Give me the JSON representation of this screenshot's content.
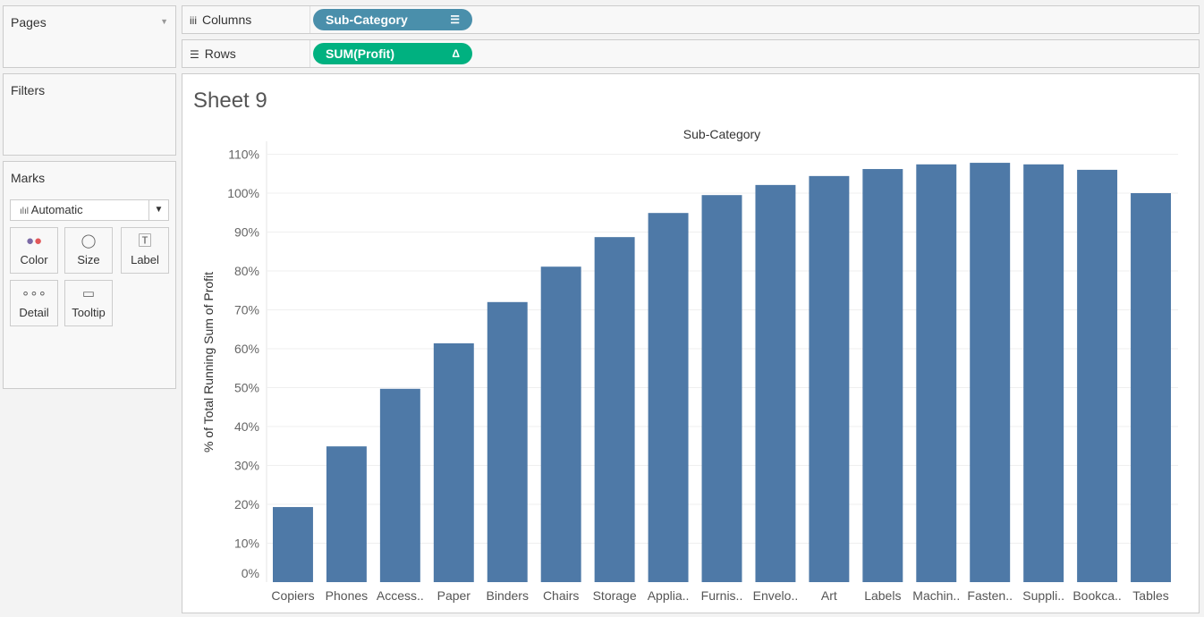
{
  "pages": {
    "title": "Pages"
  },
  "filters": {
    "title": "Filters"
  },
  "marks": {
    "title": "Marks",
    "type": "Automatic",
    "buttons": [
      {
        "label": "Color",
        "icon": "color-icon"
      },
      {
        "label": "Size",
        "icon": "size-icon"
      },
      {
        "label": "Label",
        "icon": "label-icon"
      },
      {
        "label": "Detail",
        "icon": "detail-icon"
      },
      {
        "label": "Tooltip",
        "icon": "tooltip-icon"
      }
    ]
  },
  "shelves": {
    "columns_label": "Columns",
    "columns_pill": "Sub-Category",
    "rows_label": "Rows",
    "rows_pill": "SUM(Profit)",
    "rows_pill_icon": "Δ",
    "columns_color": "#4a8fab",
    "rows_color": "#00b180"
  },
  "sheet": {
    "title": "Sheet 9"
  },
  "chart_data": {
    "type": "bar",
    "title": "Sub-Category",
    "xlabel": "Sub-Category",
    "ylabel": "% of Total Running Sum of Profit",
    "ylim": [
      0,
      110
    ],
    "yticks": [
      "0%",
      "10%",
      "20%",
      "30%",
      "40%",
      "50%",
      "60%",
      "70%",
      "80%",
      "90%",
      "100%",
      "110%"
    ],
    "categories": [
      "Copiers",
      "Phones",
      "Access..",
      "Paper",
      "Binders",
      "Chairs",
      "Storage",
      "Applia..",
      "Furnis..",
      "Envelo..",
      "Art",
      "Labels",
      "Machin..",
      "Fasten..",
      "Suppli..",
      "Bookca..",
      "Tables"
    ],
    "values": [
      19.3,
      34.9,
      49.7,
      61.4,
      72.0,
      81.1,
      88.7,
      94.9,
      99.5,
      102.1,
      104.4,
      106.2,
      107.4,
      107.8,
      107.4,
      106.0,
      100.0
    ],
    "color": "#4e79a7",
    "grid": true
  }
}
